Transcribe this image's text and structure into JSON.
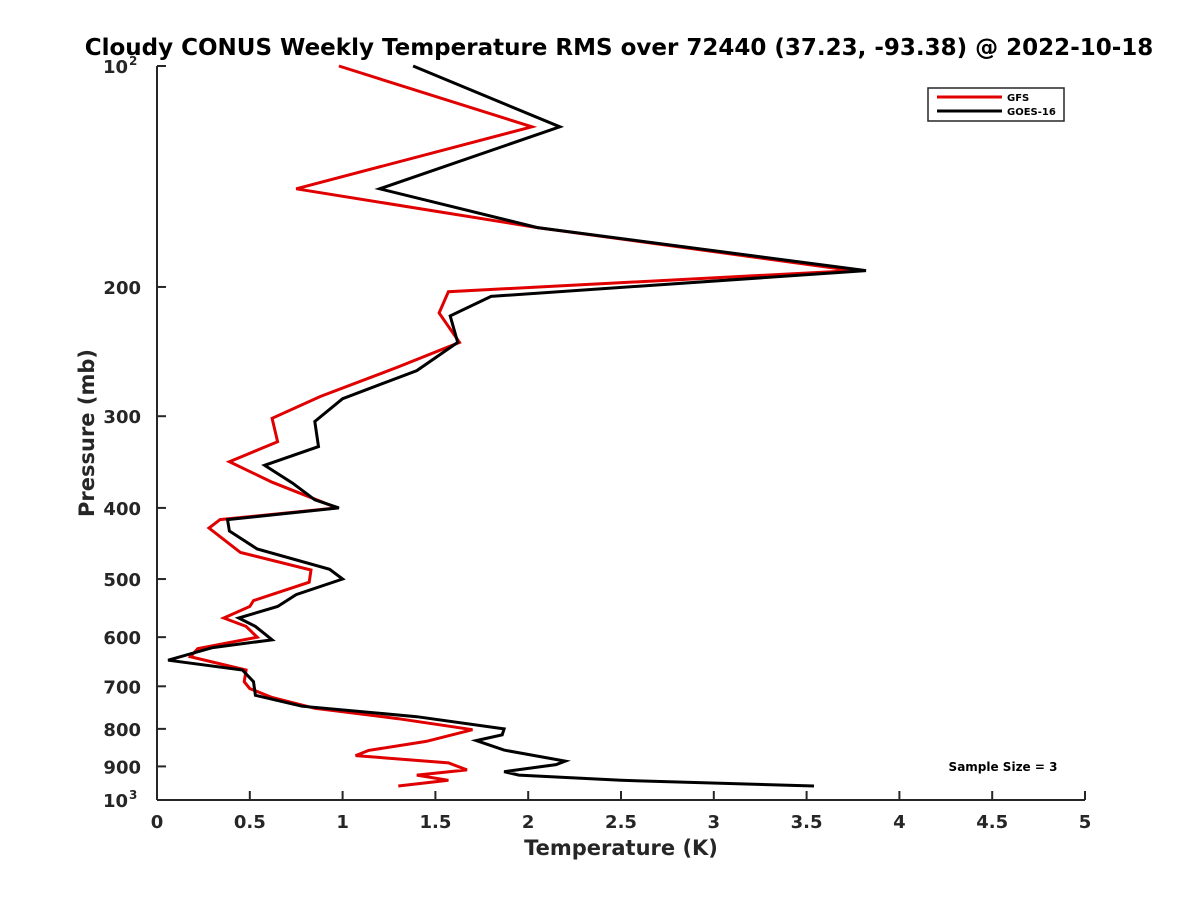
{
  "chart_data": {
    "type": "line",
    "title": "Cloudy CONUS Weekly Temperature RMS over 72440 (37.23, -93.38) @ 2022-10-18",
    "xlabel": "Temperature (K)",
    "ylabel": "Pressure (mb)",
    "xlim": [
      0,
      5
    ],
    "ylim": [
      100,
      1000
    ],
    "y_scale": "log",
    "y_reversed": true,
    "grid": false,
    "legend_position": "top-right",
    "x_ticks": [
      "0",
      "0.5",
      "1",
      "1.5",
      "2",
      "2.5",
      "3",
      "3.5",
      "4",
      "4.5",
      "5"
    ],
    "y_ticks": [
      {
        "value": 100,
        "base": "10",
        "exp": "2"
      },
      {
        "value": 200,
        "base": "200",
        "exp": ""
      },
      {
        "value": 300,
        "base": "300",
        "exp": ""
      },
      {
        "value": 400,
        "base": "400",
        "exp": ""
      },
      {
        "value": 500,
        "base": "500",
        "exp": ""
      },
      {
        "value": 600,
        "base": "600",
        "exp": ""
      },
      {
        "value": 700,
        "base": "700",
        "exp": ""
      },
      {
        "value": 800,
        "base": "800",
        "exp": ""
      },
      {
        "value": 900,
        "base": "900",
        "exp": ""
      },
      {
        "value": 1000,
        "base": "10",
        "exp": "3"
      }
    ],
    "annotation": "Sample Size = 3",
    "series": [
      {
        "name": "GFS",
        "color": "#e00000",
        "points": [
          [
            0.98,
            100
          ],
          [
            2.02,
            121
          ],
          [
            0.75,
            147
          ],
          [
            2.05,
            166
          ],
          [
            3.75,
            190
          ],
          [
            1.57,
            203
          ],
          [
            1.52,
            217
          ],
          [
            1.63,
            238
          ],
          [
            1.3,
            257
          ],
          [
            0.88,
            282
          ],
          [
            0.62,
            302
          ],
          [
            0.65,
            325
          ],
          [
            0.39,
            346
          ],
          [
            0.62,
            369
          ],
          [
            0.97,
            400
          ],
          [
            0.34,
            415
          ],
          [
            0.28,
            426
          ],
          [
            0.45,
            460
          ],
          [
            0.83,
            486
          ],
          [
            0.82,
            505
          ],
          [
            0.52,
            535
          ],
          [
            0.5,
            545
          ],
          [
            0.36,
            565
          ],
          [
            0.48,
            580
          ],
          [
            0.54,
            600
          ],
          [
            0.22,
            622
          ],
          [
            0.18,
            638
          ],
          [
            0.48,
            665
          ],
          [
            0.47,
            690
          ],
          [
            0.5,
            705
          ],
          [
            0.62,
            725
          ],
          [
            0.85,
            750
          ],
          [
            1.3,
            775
          ],
          [
            1.7,
            802
          ],
          [
            1.45,
            832
          ],
          [
            1.14,
            856
          ],
          [
            1.07,
            870
          ],
          [
            1.57,
            890
          ],
          [
            1.67,
            910
          ],
          [
            1.4,
            925
          ],
          [
            1.57,
            940
          ],
          [
            1.3,
            957
          ]
        ]
      },
      {
        "name": "GOES-16",
        "color": "#000000",
        "points": [
          [
            1.38,
            100
          ],
          [
            2.17,
            121
          ],
          [
            1.2,
            147
          ],
          [
            2.05,
            166
          ],
          [
            3.82,
            190
          ],
          [
            1.8,
            206
          ],
          [
            1.58,
            219
          ],
          [
            1.62,
            238
          ],
          [
            1.4,
            260
          ],
          [
            1.0,
            284
          ],
          [
            0.85,
            305
          ],
          [
            0.87,
            330
          ],
          [
            0.58,
            350
          ],
          [
            0.73,
            370
          ],
          [
            0.85,
            390
          ],
          [
            0.98,
            400
          ],
          [
            0.38,
            415
          ],
          [
            0.39,
            430
          ],
          [
            0.54,
            455
          ],
          [
            0.93,
            485
          ],
          [
            1.0,
            500
          ],
          [
            0.75,
            525
          ],
          [
            0.65,
            545
          ],
          [
            0.44,
            565
          ],
          [
            0.53,
            580
          ],
          [
            0.62,
            605
          ],
          [
            0.3,
            620
          ],
          [
            0.06,
            645
          ],
          [
            0.46,
            665
          ],
          [
            0.52,
            690
          ],
          [
            0.53,
            720
          ],
          [
            0.78,
            745
          ],
          [
            1.4,
            770
          ],
          [
            1.87,
            800
          ],
          [
            1.86,
            815
          ],
          [
            1.72,
            830
          ],
          [
            1.87,
            855
          ],
          [
            2.2,
            885
          ],
          [
            2.15,
            895
          ],
          [
            1.87,
            915
          ],
          [
            1.95,
            925
          ],
          [
            2.5,
            940
          ],
          [
            3.54,
            957
          ]
        ]
      }
    ]
  }
}
